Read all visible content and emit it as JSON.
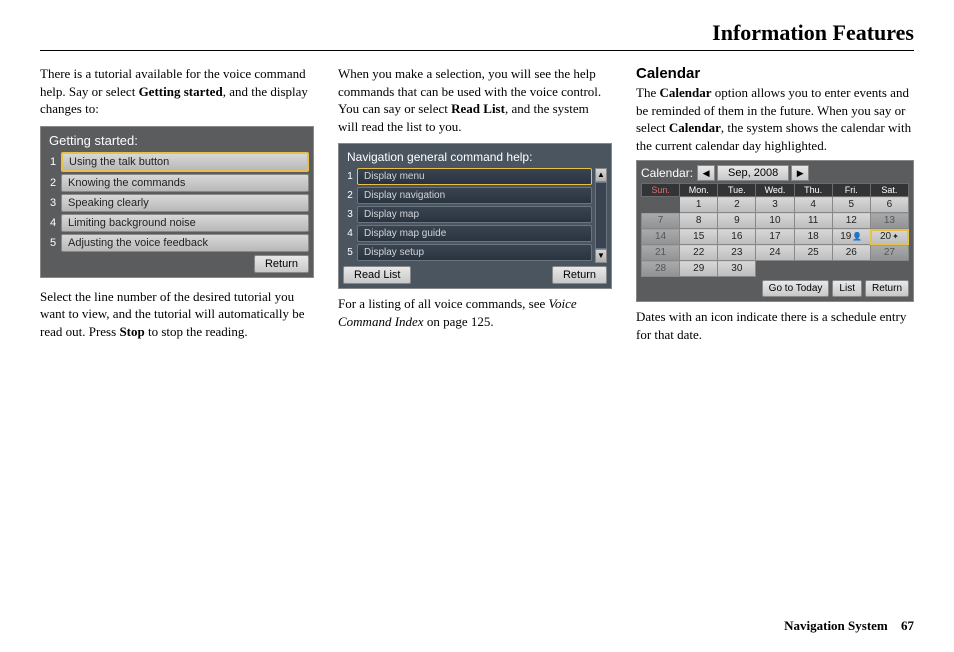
{
  "header": {
    "title": "Information Features"
  },
  "col1": {
    "intro1": "There is a tutorial available for the voice command help. Say or select ",
    "intro1_bold": "Getting started",
    "intro1_tail": ", and the display changes to:",
    "getting_started": {
      "title": "Getting started:",
      "items": [
        "Using the talk button",
        "Knowing the commands",
        "Speaking clearly",
        "Limiting background noise",
        "Adjusting the voice feedback"
      ],
      "return": "Return"
    },
    "para2a": "Select the line number of the desired tutorial you want to view, and the tutorial will automatically be read out. Press ",
    "para2_bold": "Stop",
    "para2b": " to stop the reading."
  },
  "col2": {
    "para1a": "When you make a selection, you will see the help commands that can be used with the voice control. You can say or select ",
    "para1_bold": "Read List",
    "para1b": ", and the system will read the list to you.",
    "navhelp": {
      "title": "Navigation general command help:",
      "items": [
        "Display menu",
        "Display navigation",
        "Display map",
        "Display map guide",
        "Display setup"
      ],
      "readlist": "Read List",
      "return": "Return"
    },
    "para2a": "For a listing of all voice commands, see ",
    "para2_italic": "Voice Command Index",
    "para2b": " on page 125."
  },
  "col3": {
    "heading": "Calendar",
    "para1a": "The ",
    "para1_bold1": "Calendar",
    "para1b": " option allows you to enter events and be reminded of them in the future. When you say or select ",
    "para1_bold2": "Calendar",
    "para1c": ", the system shows the calendar with the current calendar day highlighted.",
    "calendar": {
      "label": "Calendar:",
      "month": "Sep, 2008",
      "dow": [
        "Sun.",
        "Mon.",
        "Tue.",
        "Wed.",
        "Thu.",
        "Fri.",
        "Sat."
      ],
      "rows": [
        [
          {
            "v": "",
            "e": true
          },
          {
            "v": "1"
          },
          {
            "v": "2"
          },
          {
            "v": "3"
          },
          {
            "v": "4"
          },
          {
            "v": "5"
          },
          {
            "v": "6"
          }
        ],
        [
          {
            "v": "7",
            "d": true
          },
          {
            "v": "8"
          },
          {
            "v": "9"
          },
          {
            "v": "10"
          },
          {
            "v": "11"
          },
          {
            "v": "12"
          },
          {
            "v": "13",
            "d": true
          }
        ],
        [
          {
            "v": "14",
            "d": true
          },
          {
            "v": "15"
          },
          {
            "v": "16"
          },
          {
            "v": "17"
          },
          {
            "v": "18"
          },
          {
            "v": "19",
            "ic": "👤"
          },
          {
            "v": "20",
            "t": true,
            "ic": "✦"
          }
        ],
        [
          {
            "v": "21",
            "d": true
          },
          {
            "v": "22"
          },
          {
            "v": "23"
          },
          {
            "v": "24"
          },
          {
            "v": "25"
          },
          {
            "v": "26"
          },
          {
            "v": "27",
            "d": true
          }
        ],
        [
          {
            "v": "28",
            "d": true
          },
          {
            "v": "29"
          },
          {
            "v": "30"
          },
          {
            "v": "",
            "e": true
          },
          {
            "v": "",
            "e": true
          },
          {
            "v": "",
            "e": true
          },
          {
            "v": "",
            "e": true
          }
        ]
      ],
      "goto": "Go to Today",
      "list": "List",
      "return": "Return"
    },
    "para2": "Dates with an icon indicate there is a schedule entry for that date."
  },
  "footer": {
    "label": "Navigation System",
    "page": "67"
  }
}
